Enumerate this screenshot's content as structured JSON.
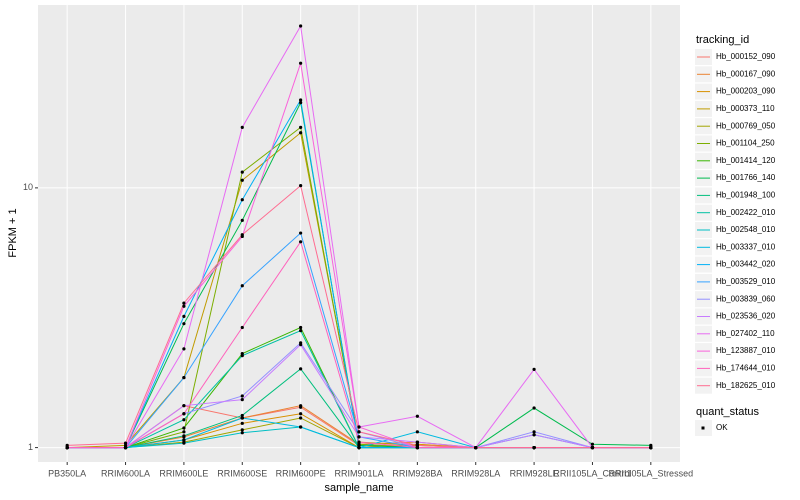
{
  "chart_data": {
    "type": "line",
    "log_y": true,
    "grid": true,
    "xlabel": "sample_name",
    "ylabel": "FPKM + 1",
    "categories": [
      "PB350LA",
      "RRIM600LA",
      "RRIM600LE",
      "RRIM600SE",
      "RRIM600PE",
      "RRIM901LA",
      "RRIM928BA",
      "RRIM928LA",
      "RRIM928LE",
      "RRII105LA_Control",
      "RRII105LA_Stressed"
    ],
    "ylim": [
      0.88,
      50.6
    ],
    "yticks": [
      1,
      10
    ],
    "legend_title": "tracking_id",
    "status_legend": {
      "title": "quant_status",
      "label": "OK",
      "color": "#000000"
    },
    "series": [
      {
        "name": "Hb_000152_090",
        "color": "#F8766D",
        "values": [
          1,
          1,
          1.45,
          1.3,
          1.43,
          1.02,
          1.02,
          1,
          1,
          1,
          1
        ]
      },
      {
        "name": "Hb_000167_090",
        "color": "#EA8331",
        "values": [
          1,
          1,
          1.1,
          1.3,
          1.45,
          1.03,
          1.05,
          1,
          1,
          1,
          1
        ]
      },
      {
        "name": "Hb_000203_090",
        "color": "#D89000",
        "values": [
          1,
          1,
          1.07,
          1.24,
          1.35,
          1,
          1.03,
          1,
          1,
          1,
          1
        ]
      },
      {
        "name": "Hb_000373_110",
        "color": "#C09B00",
        "values": [
          1,
          1.02,
          1.86,
          10.7,
          16.3,
          1.05,
          1.02,
          1,
          1,
          1,
          1
        ]
      },
      {
        "name": "Hb_000769_050",
        "color": "#A3A500",
        "values": [
          1,
          1,
          1.05,
          1.17,
          1.3,
          1,
          1,
          1,
          1,
          1,
          1
        ]
      },
      {
        "name": "Hb_001104_250",
        "color": "#7CAE00",
        "values": [
          1,
          1,
          1.15,
          11.5,
          17.1,
          1.03,
          1,
          1,
          1,
          1,
          1
        ]
      },
      {
        "name": "Hb_001414_120",
        "color": "#39B600",
        "values": [
          1,
          1,
          1.19,
          2.3,
          2.9,
          1,
          1,
          1,
          1,
          1,
          1
        ]
      },
      {
        "name": "Hb_001766_140",
        "color": "#00BB4E",
        "values": [
          1,
          1,
          3.0,
          7.5,
          21.3,
          1.02,
          1,
          1,
          1.42,
          1.03,
          1.02
        ]
      },
      {
        "name": "Hb_001948_100",
        "color": "#00BF7D",
        "values": [
          1,
          1,
          1.11,
          1.33,
          2.01,
          1,
          1,
          1,
          1,
          1,
          1
        ]
      },
      {
        "name": "Hb_002422_010",
        "color": "#00C1A3",
        "values": [
          1,
          1,
          1.28,
          2.26,
          2.82,
          1,
          1,
          1,
          1,
          1,
          1
        ]
      },
      {
        "name": "Hb_002548_010",
        "color": "#00BFC4",
        "values": [
          1,
          1,
          1.04,
          1.14,
          1.2,
          1,
          1,
          1,
          1,
          1,
          1
        ]
      },
      {
        "name": "Hb_003337_010",
        "color": "#00BAE0",
        "values": [
          1,
          1,
          1.07,
          1.3,
          1.2,
          1,
          1.15,
          1,
          1.12,
          1,
          1
        ]
      },
      {
        "name": "Hb_003442_020",
        "color": "#00B0F6",
        "values": [
          1,
          1,
          3.2,
          9.0,
          21.8,
          1,
          1,
          1,
          1,
          1,
          1
        ]
      },
      {
        "name": "Hb_003529_010",
        "color": "#35A2FF",
        "values": [
          1,
          1,
          1.86,
          4.2,
          6.7,
          1.1,
          1,
          1,
          1,
          1,
          1
        ]
      },
      {
        "name": "Hb_003839_060",
        "color": "#9590FF",
        "values": [
          1,
          1,
          1.35,
          1.58,
          2.53,
          1.15,
          1,
          1,
          1.15,
          1,
          1
        ]
      },
      {
        "name": "Hb_023536_020",
        "color": "#C77CFF",
        "values": [
          1,
          1,
          1.45,
          1.53,
          2.49,
          1.1,
          1.05,
          1,
          1.12,
          1,
          1
        ]
      },
      {
        "name": "Hb_027402_110",
        "color": "#E76BF3",
        "values": [
          1,
          1,
          2.4,
          17.1,
          42,
          1.2,
          1.32,
          1,
          2.0,
          1,
          1
        ]
      },
      {
        "name": "Hb_123887_010",
        "color": "#FA62DB",
        "values": [
          1,
          1,
          3.5,
          6.5,
          30.2,
          1.2,
          1,
          1,
          1,
          1,
          1
        ]
      },
      {
        "name": "Hb_174644_010",
        "color": "#FF62BC",
        "values": [
          1,
          1,
          1.35,
          2.9,
          6.2,
          1.05,
          1,
          1,
          1,
          1,
          1
        ]
      },
      {
        "name": "Hb_182625_010",
        "color": "#FF6C91",
        "values": [
          1.02,
          1.04,
          3.6,
          6.6,
          10.2,
          1.15,
          1.02,
          1,
          1,
          1,
          1
        ]
      }
    ]
  }
}
